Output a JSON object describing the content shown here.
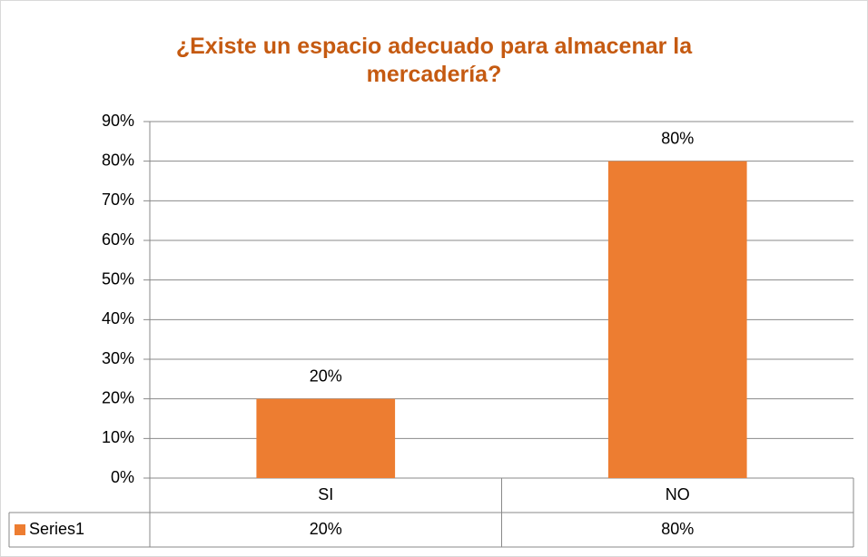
{
  "chart_data": {
    "type": "bar",
    "title": "¿Existe un espacio adecuado para almacenar la mercadería?",
    "categories": [
      "SI",
      "NO"
    ],
    "series": [
      {
        "name": "Series1",
        "color": "#ed7d31",
        "values": [
          20,
          80
        ],
        "value_labels": [
          "20%",
          "80%"
        ]
      }
    ],
    "ylim": [
      0,
      90
    ],
    "yticks": [
      {
        "value": 0,
        "label": "0%"
      },
      {
        "value": 10,
        "label": "10%"
      },
      {
        "value": 20,
        "label": "20%"
      },
      {
        "value": 30,
        "label": "30%"
      },
      {
        "value": 40,
        "label": "40%"
      },
      {
        "value": 50,
        "label": "50%"
      },
      {
        "value": 60,
        "label": "60%"
      },
      {
        "value": 70,
        "label": "70%"
      },
      {
        "value": 80,
        "label": "80%"
      },
      {
        "value": 90,
        "label": "90%"
      }
    ],
    "grid": true
  }
}
